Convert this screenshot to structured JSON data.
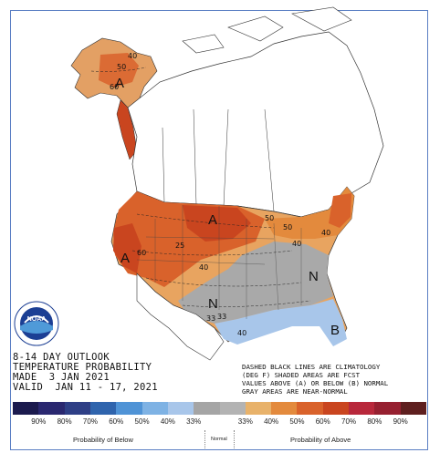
{
  "outlook": {
    "line1": "8-14 DAY OUTLOOK",
    "line2": "TEMPERATURE PROBABILITY",
    "line3": "MADE  3 JAN 2021",
    "line4": "VALID  JAN 11 - 17, 2021"
  },
  "disclaimer": {
    "line1": "DASHED BLACK LINES ARE CLIMATOLOGY",
    "line2": "(DEG F) SHADED AREAS ARE FCST",
    "line3": "VALUES ABOVE (A) OR BELOW (B) NORMAL",
    "line4": "GRAY AREAS ARE NEAR-NORMAL"
  },
  "logo": {
    "text": "NOAA",
    "icon": "noaa-logo-icon"
  },
  "legend": {
    "colors": [
      "#1b1a4e",
      "#2a2870",
      "#2e3f86",
      "#2f64ad",
      "#4f93d6",
      "#7eb2e4",
      "#a8c6ea",
      "#a5a5a5",
      "#b3b3b3",
      "#e8b26a",
      "#e38a3d",
      "#d9622b",
      "#c9451f",
      "#b8283b",
      "#962030",
      "#5e1f1f"
    ],
    "percents": [
      "90%",
      "80%",
      "70%",
      "60%",
      "50%",
      "40%",
      "33%",
      "",
      "33%",
      "40%",
      "50%",
      "60%",
      "70%",
      "80%",
      "90%"
    ],
    "below_label": "Probability of Below",
    "normal_label": "Normal",
    "above_label": "Probability of Above"
  },
  "map_labels": [
    {
      "text": "A",
      "kind": "category"
    },
    {
      "text": "A",
      "kind": "category"
    },
    {
      "text": "A",
      "kind": "category"
    },
    {
      "text": "N",
      "kind": "category"
    },
    {
      "text": "N",
      "kind": "category"
    },
    {
      "text": "B",
      "kind": "category"
    },
    {
      "text": "50",
      "kind": "isotherm"
    },
    {
      "text": "40",
      "kind": "isotherm"
    },
    {
      "text": "60",
      "kind": "isotherm"
    },
    {
      "text": "50",
      "kind": "isotherm"
    },
    {
      "text": "60",
      "kind": "isotherm"
    },
    {
      "text": "25",
      "kind": "isotherm"
    },
    {
      "text": "40",
      "kind": "isotherm"
    },
    {
      "text": "40",
      "kind": "isotherm"
    },
    {
      "text": "40",
      "kind": "isotherm"
    },
    {
      "text": "50",
      "kind": "isotherm"
    },
    {
      "text": "33",
      "kind": "isotherm"
    },
    {
      "text": "40",
      "kind": "isotherm"
    },
    {
      "text": "33",
      "kind": "isotherm"
    },
    {
      "text": "B",
      "kind": "category"
    }
  ]
}
